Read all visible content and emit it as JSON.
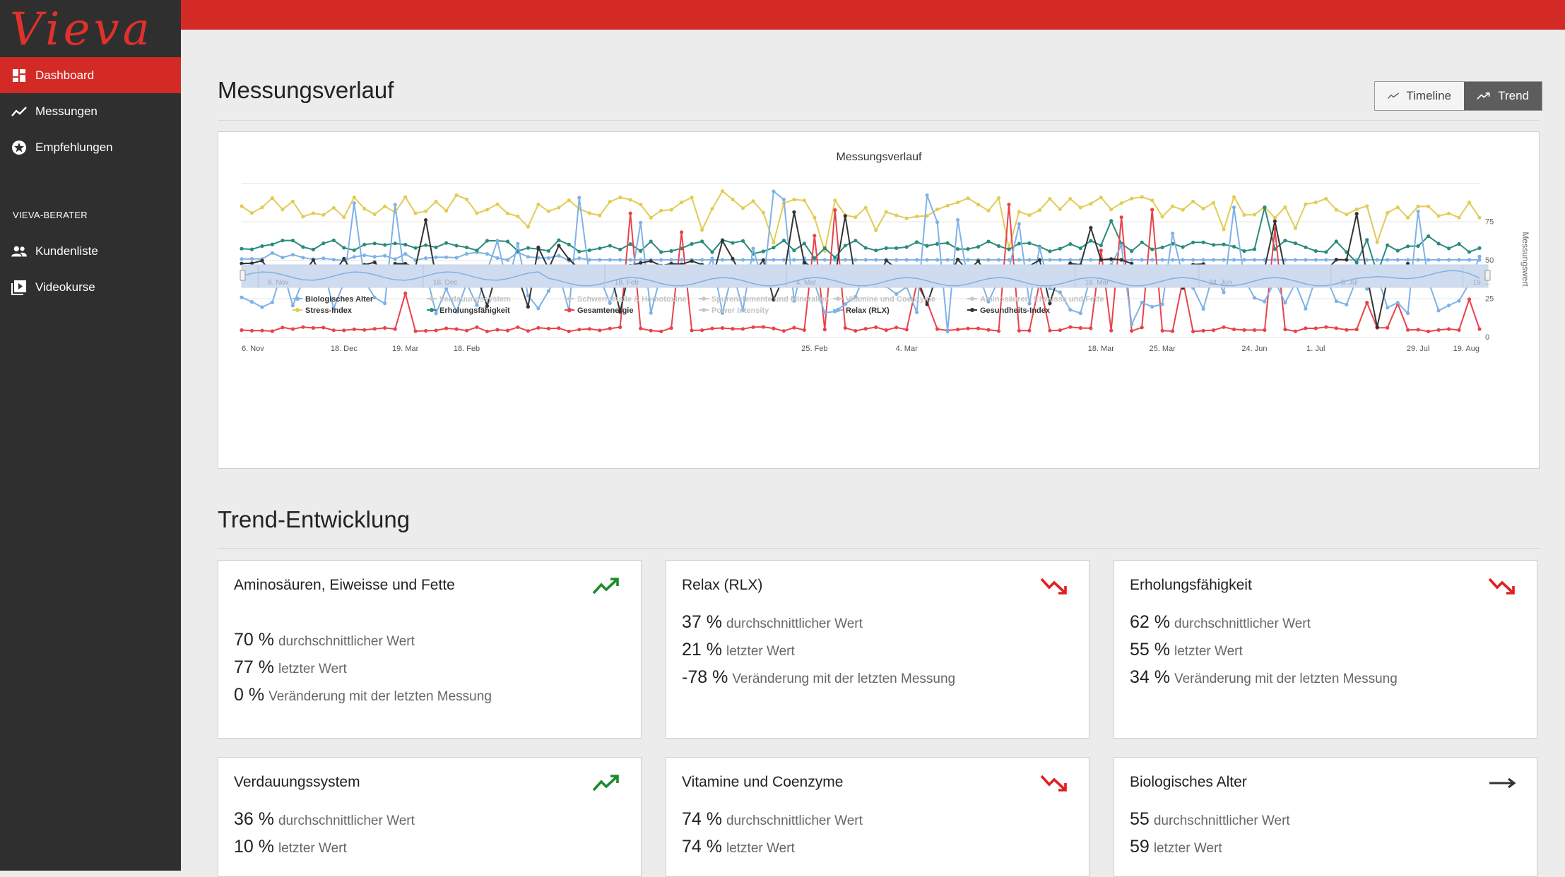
{
  "app": {
    "brand": "Vieva"
  },
  "sidebar": {
    "items": [
      {
        "label": "Dashboard",
        "icon": "dashboard-icon",
        "active": true
      },
      {
        "label": "Messungen",
        "icon": "line-chart-icon"
      },
      {
        "label": "Empfehlungen",
        "icon": "star-badge-icon"
      }
    ],
    "section_title": "VIEVA-BERATER",
    "advisor_items": [
      {
        "label": "Kundenliste",
        "icon": "people-icon"
      },
      {
        "label": "Videokurse",
        "icon": "video-play-icon"
      }
    ]
  },
  "colors": {
    "accent": "#d42a26",
    "sidebar": "#2f2f2f",
    "up": "#1f8a2e",
    "down": "#e02020",
    "neutral": "#333333"
  },
  "main": {
    "title": "Messungsverlauf",
    "view_toggle": {
      "timeline_label": "Timeline",
      "trend_label": "Trend",
      "selected": "Trend"
    },
    "trend_section_title": "Trend-Entwicklung"
  },
  "chart_data": {
    "type": "line",
    "title": "Messungsverlauf",
    "ylabel": "Messungswert",
    "ylim": [
      0,
      100
    ],
    "ytick_labels": [
      "0",
      "25",
      "50",
      "75"
    ],
    "x_tick_labels": [
      "6. Nov",
      "18. Dec",
      "19. Mar",
      "18. Feb",
      "25. Feb",
      "4. Mar",
      "18. Mar",
      "25. Mar",
      "24. Jun",
      "1. Jul",
      "29. Jul",
      "19. Aug"
    ],
    "navigator_labels": [
      "6. Nov",
      "18. Dec",
      "18. Feb",
      "4. Mar",
      "18. Mar",
      "24. Jun",
      "8. Jul",
      "19. ..."
    ],
    "grid": true,
    "legend_position": "bottom",
    "series": [
      {
        "name": "Biologisches Alter",
        "color": "#7eb2e6",
        "visible": true
      },
      {
        "name": "Verdauungssystem",
        "color": "#b8b8b8",
        "visible": false
      },
      {
        "name": "Schwermetalle & Homotoxine",
        "color": "#b8b8b8",
        "visible": false
      },
      {
        "name": "Spurenelemente und Mineralien",
        "color": "#b8b8b8",
        "visible": false
      },
      {
        "name": "Vitamine und Coenzyme",
        "color": "#b8b8b8",
        "visible": false
      },
      {
        "name": "Aminosäuren, Eiweisse und Fette",
        "color": "#b8b8b8",
        "visible": false
      },
      {
        "name": "Stress-Index",
        "color": "#e3cc55",
        "visible": true
      },
      {
        "name": "Erholungsfähigkeit",
        "color": "#2a8c7a",
        "visible": true
      },
      {
        "name": "Gesamtenergie",
        "color": "#e8434b",
        "visible": true
      },
      {
        "name": "Power Intensity",
        "color": "#b8b8b8",
        "visible": false
      },
      {
        "name": "Relax (RLX)",
        "color": "#7eb2e6",
        "visible": true
      },
      {
        "name": "Gesundheits-Index",
        "color": "#333333",
        "visible": true
      }
    ]
  },
  "trend_cards": [
    {
      "title": "Aminosäuren, Eiweisse und Fette",
      "trend": "up",
      "stats": [
        {
          "value": "70 %",
          "label": "durchschnittlicher Wert"
        },
        {
          "value": "77 %",
          "label": "letzter Wert"
        },
        {
          "value": "0 %",
          "label": "Veränderung mit der letzten Messung"
        }
      ]
    },
    {
      "title": "Relax (RLX)",
      "trend": "down",
      "stats": [
        {
          "value": "37 %",
          "label": "durchschnittlicher Wert"
        },
        {
          "value": "21 %",
          "label": "letzter Wert"
        },
        {
          "value": "-78 %",
          "label": "Veränderung mit der letzten Messung"
        }
      ]
    },
    {
      "title": "Erholungsfähigkeit",
      "trend": "down",
      "stats": [
        {
          "value": "62 %",
          "label": "durchschnittlicher Wert"
        },
        {
          "value": "55 %",
          "label": "letzter Wert"
        },
        {
          "value": "34 %",
          "label": "Veränderung mit der letzten Messung"
        }
      ]
    },
    {
      "title": "Verdauungssystem",
      "trend": "up",
      "stats": [
        {
          "value": "36 %",
          "label": "durchschnittlicher Wert"
        },
        {
          "value": "10 %",
          "label": "letzter Wert"
        }
      ]
    },
    {
      "title": "Vitamine und Coenzyme",
      "trend": "down",
      "stats": [
        {
          "value": "74 %",
          "label": "durchschnittlicher Wert"
        },
        {
          "value": "74 %",
          "label": "letzter Wert"
        }
      ]
    },
    {
      "title": "Biologisches Alter",
      "trend": "flat",
      "stats": [
        {
          "value": "55",
          "label": "durchschnittlicher Wert"
        },
        {
          "value": "59",
          "label": "letzter Wert"
        }
      ]
    }
  ]
}
